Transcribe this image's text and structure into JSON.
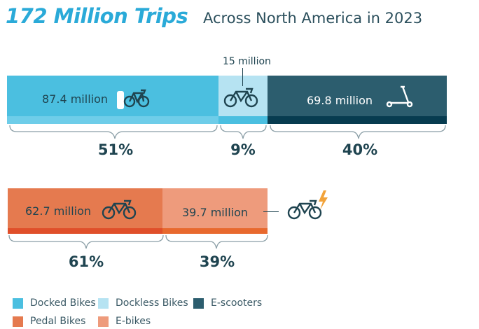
{
  "title": {
    "main": "172 Million Trips",
    "sub": "Across North America in 2023"
  },
  "chart_data": [
    {
      "type": "bar",
      "categories": [
        "Docked Bikes",
        "Dockless Bikes",
        "E-scooters"
      ],
      "values": [
        87.4,
        15,
        69.8
      ],
      "unit": "million trips",
      "labels": [
        "87.4 million",
        "15 million",
        "69.8 million"
      ],
      "percents": [
        "51%",
        "9%",
        "40%"
      ],
      "colors": [
        "#4bbfe0",
        "#b6e3f2",
        "#2c5d6e"
      ]
    },
    {
      "type": "bar",
      "categories": [
        "Pedal Bikes",
        "E-bikes"
      ],
      "values": [
        62.7,
        39.7
      ],
      "unit": "million trips",
      "labels": [
        "62.7 million",
        "39.7 million"
      ],
      "percents": [
        "61%",
        "39%"
      ],
      "colors": [
        "#e57a4f",
        "#ee9b7c"
      ]
    }
  ],
  "legend": [
    {
      "label": "Docked Bikes",
      "color": "#4bbfe0"
    },
    {
      "label": "Dockless Bikes",
      "color": "#b6e3f2"
    },
    {
      "label": "E-scooters",
      "color": "#2c5d6e"
    },
    {
      "label": "Pedal Bikes",
      "color": "#e57a4f"
    },
    {
      "label": "E-bikes",
      "color": "#ee9b7c"
    }
  ]
}
